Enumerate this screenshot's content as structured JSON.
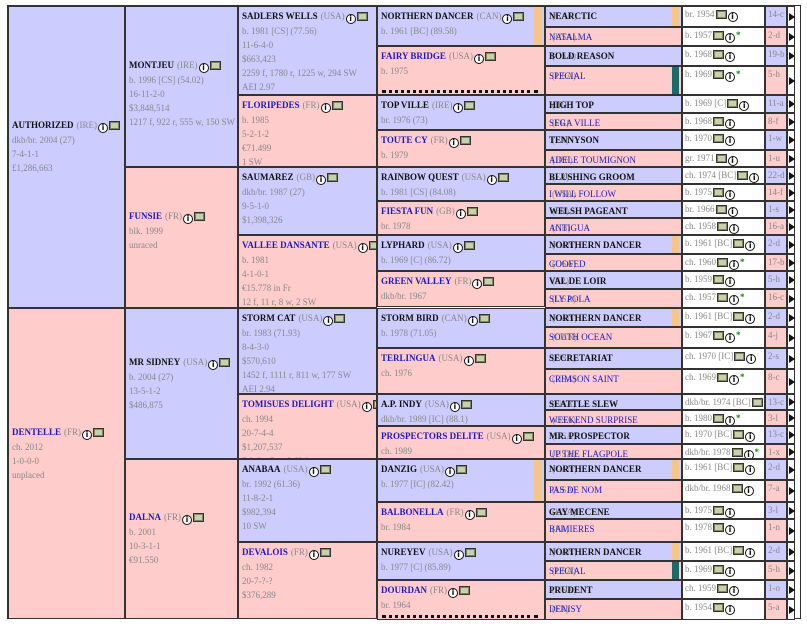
{
  "gen1": [
    {
      "name": "AUTHORIZED",
      "country": "(IRE)",
      "lines": [
        "dkb/br. 2004 (27)",
        "7-4-1-1",
        "£1,286,663"
      ]
    },
    {
      "name": "DENTELLE",
      "country": "(FR)",
      "lines": [
        "ch. 2012",
        "1-0-0-0",
        "unplaced"
      ]
    }
  ],
  "gen2": [
    {
      "name": "MONTJEU",
      "country": "(IRE)",
      "lines": [
        "b. 1996 [CS] (54.02)",
        "16-11-2-0",
        "$3,848,514",
        "1217 f, 922 r, 555 w, 150 SW"
      ]
    },
    {
      "name": "FUNSIE",
      "country": "(FR)",
      "lines": [
        "blk. 1999",
        "unraced"
      ]
    },
    {
      "name": "MR SIDNEY",
      "country": "(USA)",
      "lines": [
        "b. 2004 (27)",
        "13-5-1-2",
        "$486,875"
      ]
    },
    {
      "name": "DALNA",
      "country": "(FR)",
      "lines": [
        "b. 2001",
        "10-3-1-1",
        "€91.550"
      ]
    }
  ],
  "gen3": [
    {
      "name": "SADLERS WELLS",
      "country": "(USA)",
      "lines": [
        "b. 1981 [CS] (77.56)",
        "11-6-4-0",
        "$663,423",
        "2259 f, 1780 r, 1225 w, 294 SW",
        "AEI 2.97"
      ]
    },
    {
      "name": "FLORIPEDES",
      "country": "(FR)",
      "lines": [
        "b. 1985",
        "5-2-1-2",
        "€71.499",
        "1 SW"
      ]
    },
    {
      "name": "SAUMAREZ",
      "country": "(GB)",
      "lines": [
        "dkb/br. 1987 (27)",
        "9-5-1-0",
        "$1,398,326"
      ]
    },
    {
      "name": "VALLEE DANSANTE",
      "country": "(USA)",
      "lines": [
        "b. 1981",
        "4-1-0-1",
        "€15.778 in Fr",
        "12 f, 11 r, 8 w, 2 SW"
      ]
    },
    {
      "name": "STORM CAT",
      "country": "(USA)",
      "lines": [
        "br. 1983 (71.93)",
        "8-4-3-0",
        "$570,610",
        "1452 f, 1111 r, 811 w, 177 SW",
        "AEI 2.94"
      ]
    },
    {
      "name": "TOMISUES DELIGHT",
      "country": "(USA)",
      "lines": [
        "ch. 1994",
        "20-7-4-4",
        "$1,207,537",
        "7 f, 6 r, 5 w, 2 SW"
      ]
    },
    {
      "name": "ANABAA",
      "country": "(USA)",
      "lines": [
        "br. 1992 (61.36)",
        "11-8-2-1",
        "$982,394",
        "10 SW"
      ]
    },
    {
      "name": "DEVALOIS",
      "country": "(FR)",
      "lines": [
        "ch. 1982",
        "20-7-?-?",
        "$376,289"
      ]
    }
  ],
  "gen4": [
    {
      "name": "NORTHERN DANCER",
      "country": "(CAN)",
      "lines": [
        "b. 1961 [BC] (89.58)"
      ]
    },
    {
      "name": "FAIRY BRIDGE",
      "country": "(USA)",
      "lines": [
        "b. 1975"
      ]
    },
    {
      "name": "TOP VILLE",
      "country": "(IRE)",
      "lines": [
        "br. 1976 (73)"
      ]
    },
    {
      "name": "TOUTE CY",
      "country": "(FR)",
      "lines": [
        "b. 1979"
      ]
    },
    {
      "name": "RAINBOW QUEST",
      "country": "(USA)",
      "lines": [
        "b. 1981 [CS] (84.08)"
      ]
    },
    {
      "name": "FIESTA FUN",
      "country": "(GB)",
      "lines": [
        "br. 1978"
      ]
    },
    {
      "name": "LYPHARD",
      "country": "(USA)",
      "lines": [
        "b. 1969 [C] (86.72)"
      ]
    },
    {
      "name": "GREEN VALLEY",
      "country": "(FR)",
      "lines": [
        "dkb/br. 1967"
      ]
    },
    {
      "name": "STORM BIRD",
      "country": "(CAN)",
      "lines": [
        "b. 1978 (71.05)"
      ]
    },
    {
      "name": "TERLINGUA",
      "country": "(USA)",
      "lines": [
        "ch. 1976"
      ]
    },
    {
      "name": "A.P. INDY",
      "country": "(USA)",
      "lines": [
        "dkb/br. 1989 [IC] (88.1)"
      ]
    },
    {
      "name": "PROSPECTORS DELITE",
      "country": "(USA)",
      "lines": [
        "ch. 1989"
      ]
    },
    {
      "name": "DANZIG",
      "country": "(USA)",
      "lines": [
        "b. 1977 [IC] (82.42)"
      ]
    },
    {
      "name": "BALBONELLA",
      "country": "(FR)",
      "lines": [
        "br. 1984"
      ]
    },
    {
      "name": "NUREYEV",
      "country": "(USA)",
      "lines": [
        "b. 1977 [C] (85.89)"
      ]
    },
    {
      "name": "DOURDAN",
      "country": "(FR)",
      "lines": [
        "br. 1964"
      ]
    }
  ],
  "gen5": [
    {
      "name": "NEARCTIC",
      "country": "(CAN)",
      "year": "br. 1954",
      "extra": "14-c"
    },
    {
      "name": "NATALMA",
      "country": "(USA)",
      "year": "b. 1957",
      "extra": "2-d"
    },
    {
      "name": "BOLD REASON",
      "country": "(USA)",
      "year": "b. 1968",
      "extra": "19-b"
    },
    {
      "name": "SPECIAL",
      "country": "(USA)",
      "year": "b. 1969",
      "extra": "5-h"
    },
    {
      "name": "HIGH TOP",
      "country": "(IRE)",
      "year": "b. 1969 [C]",
      "extra": "11-a"
    },
    {
      "name": "SEGA VILLE",
      "country": "(FR)",
      "year": "b. 1968",
      "extra": "8-f"
    },
    {
      "name": "TENNYSON",
      "country": "(FR)",
      "year": "b. 1970",
      "extra": "1-w"
    },
    {
      "name": "ADELE TOUMIGNON",
      "country": "(IRE)",
      "year": "gr. 1971",
      "extra": "1-u"
    },
    {
      "name": "BLUSHING GROOM",
      "country": "(FR)",
      "year": "ch. 1974 [BC]",
      "extra": "22-d"
    },
    {
      "name": "I WILL FOLLOW",
      "country": "(USA)",
      "year": "b. 1975",
      "extra": "14-f"
    },
    {
      "name": "WELSH PAGEANT",
      "country": "(FR)",
      "year": "br. 1966",
      "extra": "1-s"
    },
    {
      "name": "ANTIGUA",
      "country": "(GB)",
      "year": "ch. 1958",
      "extra": "16-a"
    },
    {
      "name": "NORTHERN DANCER",
      "country": "(CAN)",
      "year": "b. 1961 [BC]",
      "extra": "2-d"
    },
    {
      "name": "GOOFED",
      "country": "(USA)",
      "year": "ch. 1960",
      "extra": "17-b"
    },
    {
      "name": "VAL DE LOIR",
      "country": "(FR)",
      "year": "b. 1959",
      "extra": "5-h"
    },
    {
      "name": "SLY POLA",
      "country": "(USA)",
      "year": "ch. 1957",
      "extra": "16-c"
    },
    {
      "name": "NORTHERN DANCER",
      "country": "(CAN)",
      "year": "b. 1961 [BC]",
      "extra": "2-d"
    },
    {
      "name": "SOUTH OCEAN",
      "country": "(CAN)",
      "year": "b. 1967",
      "extra": "4-j"
    },
    {
      "name": "SECRETARIAT",
      "country": "(USA)",
      "year": "ch. 1970 [IC]",
      "extra": "2-s"
    },
    {
      "name": "CRIMSON SAINT",
      "country": "(USA)",
      "year": "ch. 1969",
      "extra": "8-c"
    },
    {
      "name": "SEATTLE SLEW",
      "country": "(USA)",
      "year": "dkb/br. 1974 [BC]",
      "extra": "13-c"
    },
    {
      "name": "WEEKEND SURPRISE",
      "country": "(USA)",
      "year": "b. 1980",
      "extra": "3-l"
    },
    {
      "name": "MR. PROSPECTOR",
      "country": "(USA)",
      "year": "b. 1970 [BC]",
      "extra": "13-c"
    },
    {
      "name": "UP THE FLAGPOLE",
      "country": "(USA)",
      "year": "dkb/br. 1978",
      "extra": "1-x"
    },
    {
      "name": "NORTHERN DANCER",
      "country": "(CAN)",
      "year": "b. 1961 [BC]",
      "extra": "2-d"
    },
    {
      "name": "PAS DE NOM",
      "country": "(USA)",
      "year": "dkb/br. 1968",
      "extra": "7-a"
    },
    {
      "name": "GAY MECENE",
      "country": "(USA)",
      "year": "b. 1975",
      "extra": "3-l"
    },
    {
      "name": "BAMIERES",
      "country": "(FR)",
      "year": "b. 1978",
      "extra": "1-n"
    },
    {
      "name": "NORTHERN DANCER",
      "country": "(CAN)",
      "year": "b. 1961 [BC]",
      "extra": "2-d"
    },
    {
      "name": "SPECIAL",
      "country": "(USA)",
      "year": "b. 1969",
      "extra": "5-h"
    },
    {
      "name": "PRUDENT",
      "country": "(USA)",
      "year": "ch. 1959",
      "extra": "1-o"
    },
    {
      "name": "DENISY",
      "country": "(FR)",
      "year": "b. 1954",
      "extra": "5-a"
    }
  ],
  "colors": {
    "male": "#ccccff",
    "female": "#ffcccc",
    "female_name": "#1a1ac8",
    "orange_bar": "#f5c58a",
    "teal_bar": "#1c6b6b"
  }
}
